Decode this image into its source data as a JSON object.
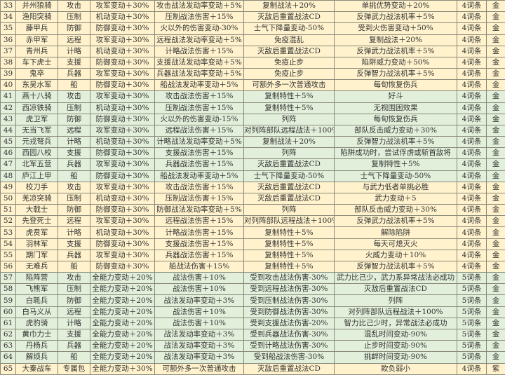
{
  "colors": {
    "yellow": "#fff2cc",
    "green": "#e2efda"
  },
  "rows": [
    {
      "id": "33",
      "name": "并州狼骑",
      "type": "攻击",
      "a": "攻军变动＋30%",
      "b": "攻击战法发动率变动＋5%",
      "c": "复制战法＋20%",
      "d": "单挑优势变动＋20%",
      "count": "4词条",
      "grade": "金",
      "bg": "y"
    },
    {
      "id": "34",
      "name": "渔阳突骑",
      "type": "压制",
      "a": "机动变动＋30%",
      "b": "压制战法伤害＋15%",
      "c": "灭敌后重置战法CD",
      "d": "反弹武力战法机率＋5%",
      "count": "4词条",
      "grade": "金",
      "bg": "y"
    },
    {
      "id": "35",
      "name": "藤甲兵",
      "type": "防御",
      "a": "防御变动＋30%",
      "b": "火以外的伤害变动-30%",
      "c": "士气下降量变动-50%",
      "d": "受到火伤害变动＋50%",
      "count": "4词条",
      "grade": "金",
      "bg": "y"
    },
    {
      "id": "36",
      "name": "赤甲军",
      "type": "远程",
      "a": "攻军变动＋30%",
      "b": "远程战法发动率变动＋5%",
      "c": "免疫混乱",
      "d": "复制战法＋20%",
      "count": "4词条",
      "grade": "金",
      "bg": "y"
    },
    {
      "id": "37",
      "name": "青州兵",
      "type": "计略",
      "a": "机动变动＋30%",
      "b": "计略战法伤害＋15%",
      "c": "灭敌后重置战法CD",
      "d": "反弹武力战法机率＋5%",
      "count": "4词条",
      "grade": "金",
      "bg": "y"
    },
    {
      "id": "38",
      "name": "车下虎士",
      "type": "支援",
      "a": "防御变动＋30%",
      "b": "支援战法发动率变动＋5%",
      "c": "免疫止步",
      "d": "陷阱威力变动＋50%",
      "count": "4词条",
      "grade": "金",
      "bg": "y"
    },
    {
      "id": "39",
      "name": "鬼卒",
      "type": "兵器",
      "a": "攻军变动＋30%",
      "b": "兵器战法发动率变动＋5%",
      "c": "免疫止步",
      "d": "反弹智力战法机率＋5%",
      "count": "4词条",
      "grade": "金",
      "bg": "y"
    },
    {
      "id": "40",
      "name": "东吴水军",
      "type": "船",
      "a": "防御变动＋30%",
      "b": "船战法发动率变动＋5%",
      "c": "可额外多一次普通攻击",
      "d": "每旬恢复伤兵",
      "count": "4词条",
      "grade": "金",
      "bg": "y"
    },
    {
      "id": "41",
      "name": "燕十八骑",
      "type": "攻击",
      "a": "攻军变动＋30%",
      "b": "攻击战法伤害＋15%",
      "c": "复制特性＋5%",
      "d": "好斗",
      "count": "4词条",
      "grade": "金",
      "bg": "g"
    },
    {
      "id": "42",
      "name": "西凉铁骑",
      "type": "压制",
      "a": "机动变动＋30%",
      "b": "压制战法伤害＋15%",
      "c": "复制特性＋5%",
      "d": "无视围困效果",
      "count": "4词条",
      "grade": "金",
      "bg": "g"
    },
    {
      "id": "43",
      "name": "虎卫军",
      "type": "防御",
      "a": "防御变动＋30%",
      "b": "火以外的伤害变动-15%",
      "c": "列阵",
      "d": "每旬恢复伤兵",
      "count": "4词条",
      "grade": "金",
      "bg": "g"
    },
    {
      "id": "44",
      "name": "无当飞军",
      "type": "远程",
      "a": "攻军变动＋30%",
      "b": "远程战法伤害＋15%",
      "c": "对列阵部队远程战法＋100%",
      "d": "部队反击威力变动＋30%",
      "count": "4词条",
      "grade": "金",
      "bg": "g"
    },
    {
      "id": "45",
      "name": "元戎弩兵",
      "type": "计略",
      "a": "机动变动＋30%",
      "b": "计略战法发动率变动＋5%",
      "c": "复制战法＋20%",
      "d": "反弹智力战法机率＋5%",
      "count": "4词条",
      "grade": "金",
      "bg": "g"
    },
    {
      "id": "46",
      "name": "西园八校",
      "type": "支援",
      "a": "防御变动＋30%",
      "b": "支援战法伤害＋15%",
      "c": "列阵",
      "d": "陷阱成功时，尝试俘虏或斩首敌将",
      "count": "4词条",
      "grade": "金",
      "bg": "g"
    },
    {
      "id": "47",
      "name": "北军五营",
      "type": "兵器",
      "a": "攻军变动＋30%",
      "b": "兵器战法伤害＋15%",
      "c": "灭敌后重置战法CD",
      "d": "复制特性＋5%",
      "count": "4词条",
      "grade": "金",
      "bg": "g"
    },
    {
      "id": "48",
      "name": "庐江上甲",
      "type": "船",
      "a": "防御变动＋30%",
      "b": "船战法发动率变动＋5%",
      "c": "士气下降量变动-50%",
      "d": "士气下降量变动-50%",
      "count": "4词条",
      "grade": "金",
      "bg": "g"
    },
    {
      "id": "49",
      "name": "校刀手",
      "type": "攻击",
      "a": "攻军变动＋30%",
      "b": "攻击战法伤害＋15%",
      "c": "灭敌后重置战法CD",
      "d": "与武力低者单挑必胜",
      "count": "4词条",
      "grade": "金",
      "bg": "y"
    },
    {
      "id": "50",
      "name": "羌凉突骑",
      "type": "压制",
      "a": "机动变动＋30%",
      "b": "压制战法伤害＋15%",
      "c": "灭敌后重置战法CD",
      "d": "武力变动＋5",
      "count": "4词条",
      "grade": "金",
      "bg": "y"
    },
    {
      "id": "51",
      "name": "大戟士",
      "type": "防御",
      "a": "防御变动＋30%",
      "b": "防御战法发动率变动＋5%",
      "c": "列阵",
      "d": "部队反击威力变动＋30%",
      "count": "4词条",
      "grade": "金",
      "bg": "y"
    },
    {
      "id": "52",
      "name": "先登死士",
      "type": "远程",
      "a": "攻军变动＋30%",
      "b": "远程战法伤害＋15%",
      "c": "对列阵部队远程战法＋100%",
      "d": "反弹武力战法机率＋5%",
      "count": "4词条",
      "grade": "金",
      "bg": "y"
    },
    {
      "id": "53",
      "name": "虎贲军",
      "type": "计略",
      "a": "机动变动＋30%",
      "b": "计略战法伤害＋15%",
      "c": "复制特性＋5%",
      "d": "解除陷阱",
      "count": "4词条",
      "grade": "金",
      "bg": "y"
    },
    {
      "id": "54",
      "name": "羽林军",
      "type": "支援",
      "a": "防御变动＋30%",
      "b": "支援战法伤害＋15%",
      "c": "复制特性＋5%",
      "d": "每天可熄灭火",
      "count": "4词条",
      "grade": "金",
      "bg": "y"
    },
    {
      "id": "55",
      "name": "期门军",
      "type": "兵器",
      "a": "攻军变动＋30%",
      "b": "兵器战法伤害＋15%",
      "c": "复制特性＋5%",
      "d": "火威力变动＋10%",
      "count": "4词条",
      "grade": "金",
      "bg": "y"
    },
    {
      "id": "56",
      "name": "无难兵",
      "type": "船",
      "a": "防御变动＋30%",
      "b": "船战法伤害＋15%",
      "c": "复制特性＋5%",
      "d": "反弹智力战法机率＋5%",
      "count": "4词条",
      "grade": "金",
      "bg": "y"
    },
    {
      "id": "57",
      "name": "陷阵营",
      "type": "攻击",
      "a": "全能力变动＋20%",
      "b": "战法伤害＋10%",
      "c": "受到攻击战法伤害-30%",
      "d": "武力比己少，武力系异常战法必成功",
      "count": "5词条",
      "grade": "金",
      "bg": "g"
    },
    {
      "id": "58",
      "name": "飞熊军",
      "type": "压制",
      "a": "全能力变动＋20%",
      "b": "战法伤害＋10%",
      "c": "受到远程战法伤害-30%",
      "d": "灭敌后重置战法CD",
      "count": "5词条",
      "grade": "金",
      "bg": "g"
    },
    {
      "id": "59",
      "name": "白毦兵",
      "type": "防御",
      "a": "全能力变动＋20%",
      "b": "战法发动率变动＋3%",
      "c": "受到压制战法伤害-30%",
      "d": "列阵",
      "count": "5词条",
      "grade": "金",
      "bg": "g"
    },
    {
      "id": "60",
      "name": "白马义从",
      "type": "远程",
      "a": "全能力变动＋20%",
      "b": "战法伤害＋10%",
      "c": "受到防御战法伤害-30%",
      "d": "对列阵部队远程战法＋100%",
      "count": "5词条",
      "grade": "金",
      "bg": "g"
    },
    {
      "id": "61",
      "name": "虎豹骑",
      "type": "计略",
      "a": "全能力变动＋20%",
      "b": "战法伤害＋10%",
      "c": "受到支援战法伤害-20%",
      "d": "智力比己少时，异常战法必成功",
      "count": "5词条",
      "grade": "金",
      "bg": "g"
    },
    {
      "id": "62",
      "name": "黄巾力士",
      "type": "支援",
      "a": "全能力变动＋20%",
      "b": "战法发动率变动＋3%",
      "c": "受到兵器战法伤害-30%",
      "d": "混乱时间变动-90%",
      "count": "5词条",
      "grade": "金",
      "bg": "g"
    },
    {
      "id": "63",
      "name": "丹杨兵",
      "type": "兵器",
      "a": "全能力变动＋20%",
      "b": "战法发动率变动＋3%",
      "c": "受到计略战法伤害-30%",
      "d": "止步时间变动-90%",
      "count": "5词条",
      "grade": "金",
      "bg": "g"
    },
    {
      "id": "64",
      "name": "解烦兵",
      "type": "船",
      "a": "全能力变动＋20%",
      "b": "战法发动率变动＋3%",
      "c": "受到船战法伤害-30%",
      "d": "挑衅时间变动-90%",
      "count": "5词条",
      "grade": "金",
      "bg": "g"
    },
    {
      "id": "65",
      "name": "大秦战车",
      "type": "专属包",
      "a": "全能力变动＋30%",
      "b": "可额外多一次普通攻击",
      "c": "灭敌后重置战法CD",
      "d": "欺负弱小",
      "count": "4词条",
      "grade": "紫",
      "bg": "y"
    }
  ]
}
